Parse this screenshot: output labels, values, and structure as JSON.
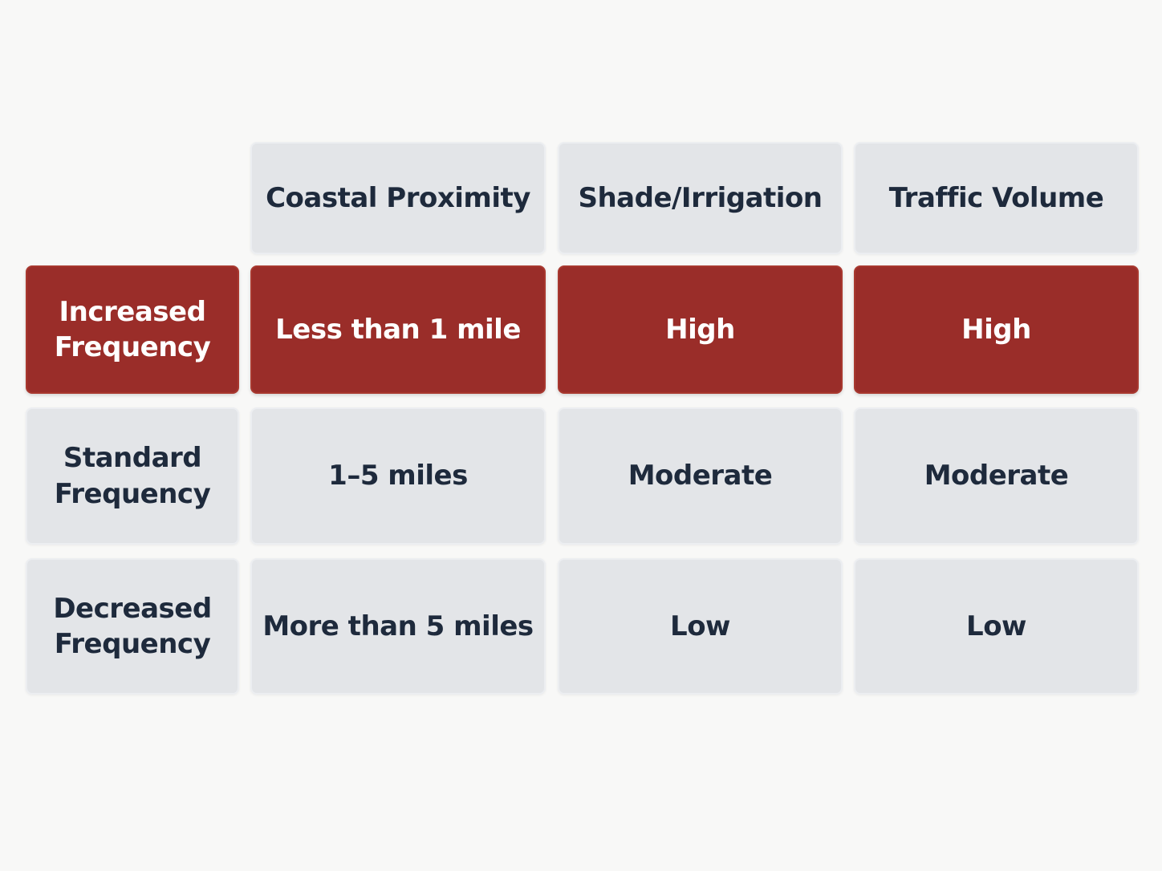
{
  "table": {
    "header": [
      "Coastal Proximity",
      "Shade/Irrigation",
      "Traffic Volume"
    ],
    "rows": [
      {
        "label": "Increased Frequency",
        "cells": [
          "Less than 1 mile",
          "High",
          "High"
        ]
      },
      {
        "label": "Standard Frequency",
        "cells": [
          "1–5 miles",
          "Moderate",
          "Moderate"
        ]
      },
      {
        "label": "Decreased Frequency",
        "cells": [
          "More than 5 miles",
          "Low",
          "Low"
        ]
      }
    ]
  }
}
